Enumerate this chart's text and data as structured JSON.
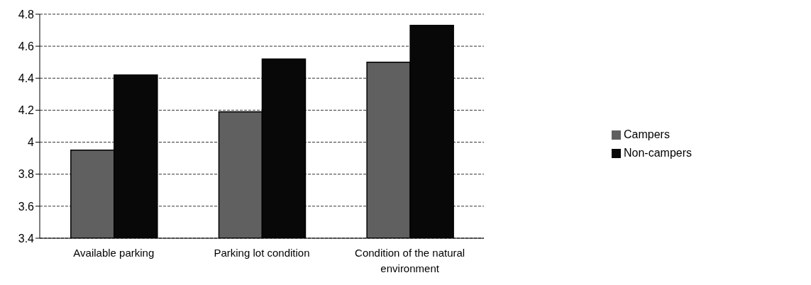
{
  "chart_data": {
    "type": "bar",
    "categories": [
      "Available parking",
      "Parking lot condition",
      "Condition of the natural environment"
    ],
    "series": [
      {
        "name": "Campers",
        "color": "#606060",
        "values": [
          3.95,
          4.19,
          4.5
        ]
      },
      {
        "name": "Non-campers",
        "color": "#080808",
        "values": [
          4.42,
          4.52,
          4.73
        ]
      }
    ],
    "ylim": [
      3.4,
      4.8
    ],
    "yticks": [
      3.4,
      3.6,
      3.8,
      4,
      4.2,
      4.4,
      4.6,
      4.8
    ],
    "grid": "y",
    "legend": "right"
  }
}
